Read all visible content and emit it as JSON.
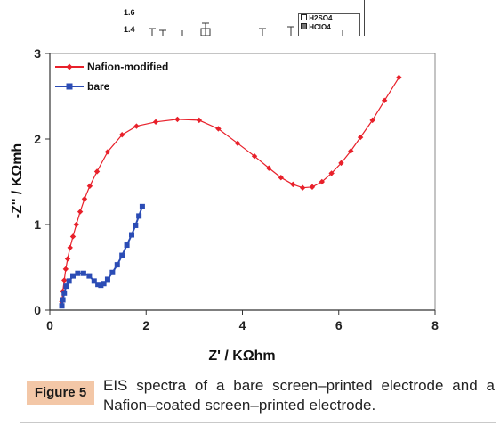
{
  "top_fragment": {
    "tick_labels": [
      "1.6",
      "1.4"
    ],
    "legend": [
      "H2SO4",
      "HClO4"
    ]
  },
  "chart_data": {
    "type": "line",
    "xlabel": "Z' / KΩhm",
    "ylabel": "-Z'' / KΩmh",
    "xlim": [
      0,
      8
    ],
    "ylim": [
      0,
      3
    ],
    "xticks": [
      "0",
      "2",
      "4",
      "6",
      "8"
    ],
    "yticks": [
      "0",
      "1",
      "2",
      "3"
    ],
    "grid": false,
    "legend_position": "top-left",
    "series": [
      {
        "name": "Nafion-modified",
        "color": "#e8202a",
        "marker": "diamond",
        "x": [
          0.25,
          0.27,
          0.3,
          0.33,
          0.37,
          0.42,
          0.48,
          0.55,
          0.63,
          0.72,
          0.83,
          0.98,
          1.2,
          1.5,
          1.8,
          2.2,
          2.65,
          3.1,
          3.5,
          3.9,
          4.25,
          4.55,
          4.8,
          5.05,
          5.25,
          5.45,
          5.65,
          5.85,
          6.05,
          6.25,
          6.45,
          6.7,
          6.95,
          7.25
        ],
        "y": [
          0.1,
          0.22,
          0.35,
          0.48,
          0.6,
          0.73,
          0.86,
          1.0,
          1.15,
          1.3,
          1.45,
          1.62,
          1.85,
          2.05,
          2.15,
          2.2,
          2.23,
          2.22,
          2.12,
          1.95,
          1.8,
          1.66,
          1.55,
          1.47,
          1.43,
          1.44,
          1.5,
          1.6,
          1.72,
          1.86,
          2.02,
          2.22,
          2.45,
          2.72
        ]
      },
      {
        "name": "bare",
        "color": "#2b4cb5",
        "marker": "square",
        "x": [
          0.25,
          0.27,
          0.3,
          0.34,
          0.4,
          0.48,
          0.58,
          0.7,
          0.82,
          0.92,
          1.0,
          1.06,
          1.12,
          1.2,
          1.3,
          1.4,
          1.5,
          1.6,
          1.7,
          1.78,
          1.85,
          1.92
        ],
        "y": [
          0.05,
          0.12,
          0.2,
          0.28,
          0.34,
          0.4,
          0.43,
          0.43,
          0.4,
          0.34,
          0.3,
          0.29,
          0.31,
          0.36,
          0.44,
          0.53,
          0.64,
          0.76,
          0.88,
          0.99,
          1.1,
          1.21
        ]
      }
    ]
  },
  "caption": {
    "label": "Figure 5",
    "text": "EIS spectra of a bare screen–printed electrode and a Nafion–coated screen–printed electrode."
  }
}
